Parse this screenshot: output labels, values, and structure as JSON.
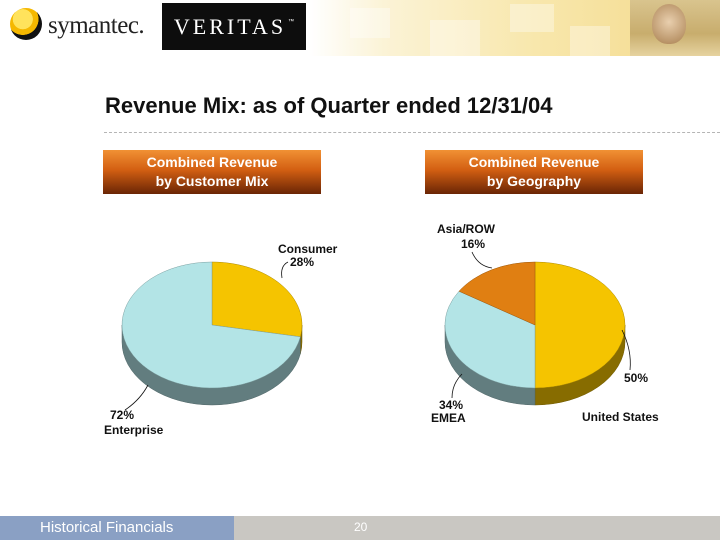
{
  "header": {
    "logo_left": "symantec.",
    "logo_right": "VERITAS",
    "logo_right_mark": "™"
  },
  "slide": {
    "title": "Revenue Mix:  as of Quarter ended 12/31/04"
  },
  "panels": [
    {
      "line1": "Combined Revenue",
      "line2": "by Customer Mix"
    },
    {
      "line1": "Combined Revenue",
      "line2": "by Geography"
    }
  ],
  "colors": {
    "gold": "#F5C400",
    "light_blue": "#B3E4E6",
    "orange": "#E07F12",
    "box_orange": "#D35F12",
    "footer_blue": "#8AA0C4"
  },
  "chart_data": [
    {
      "type": "pie",
      "title": "",
      "slices": [
        {
          "name": "Consumer",
          "value": 28,
          "label": "28%",
          "color": "#F5C400"
        },
        {
          "name": "Enterprise",
          "value": 72,
          "label": "72%",
          "color": "#B3E4E6"
        }
      ]
    },
    {
      "type": "pie",
      "title": "",
      "slices": [
        {
          "name": "United States",
          "value": 50,
          "label": "50%",
          "color": "#F5C400"
        },
        {
          "name": "EMEA",
          "value": 34,
          "label": "34%",
          "color": "#B3E4E6"
        },
        {
          "name": "Asia/ROW",
          "value": 16,
          "label": "16%",
          "color": "#E07F12"
        }
      ]
    }
  ],
  "footer": {
    "section": "Historical Financials",
    "page": "20"
  }
}
